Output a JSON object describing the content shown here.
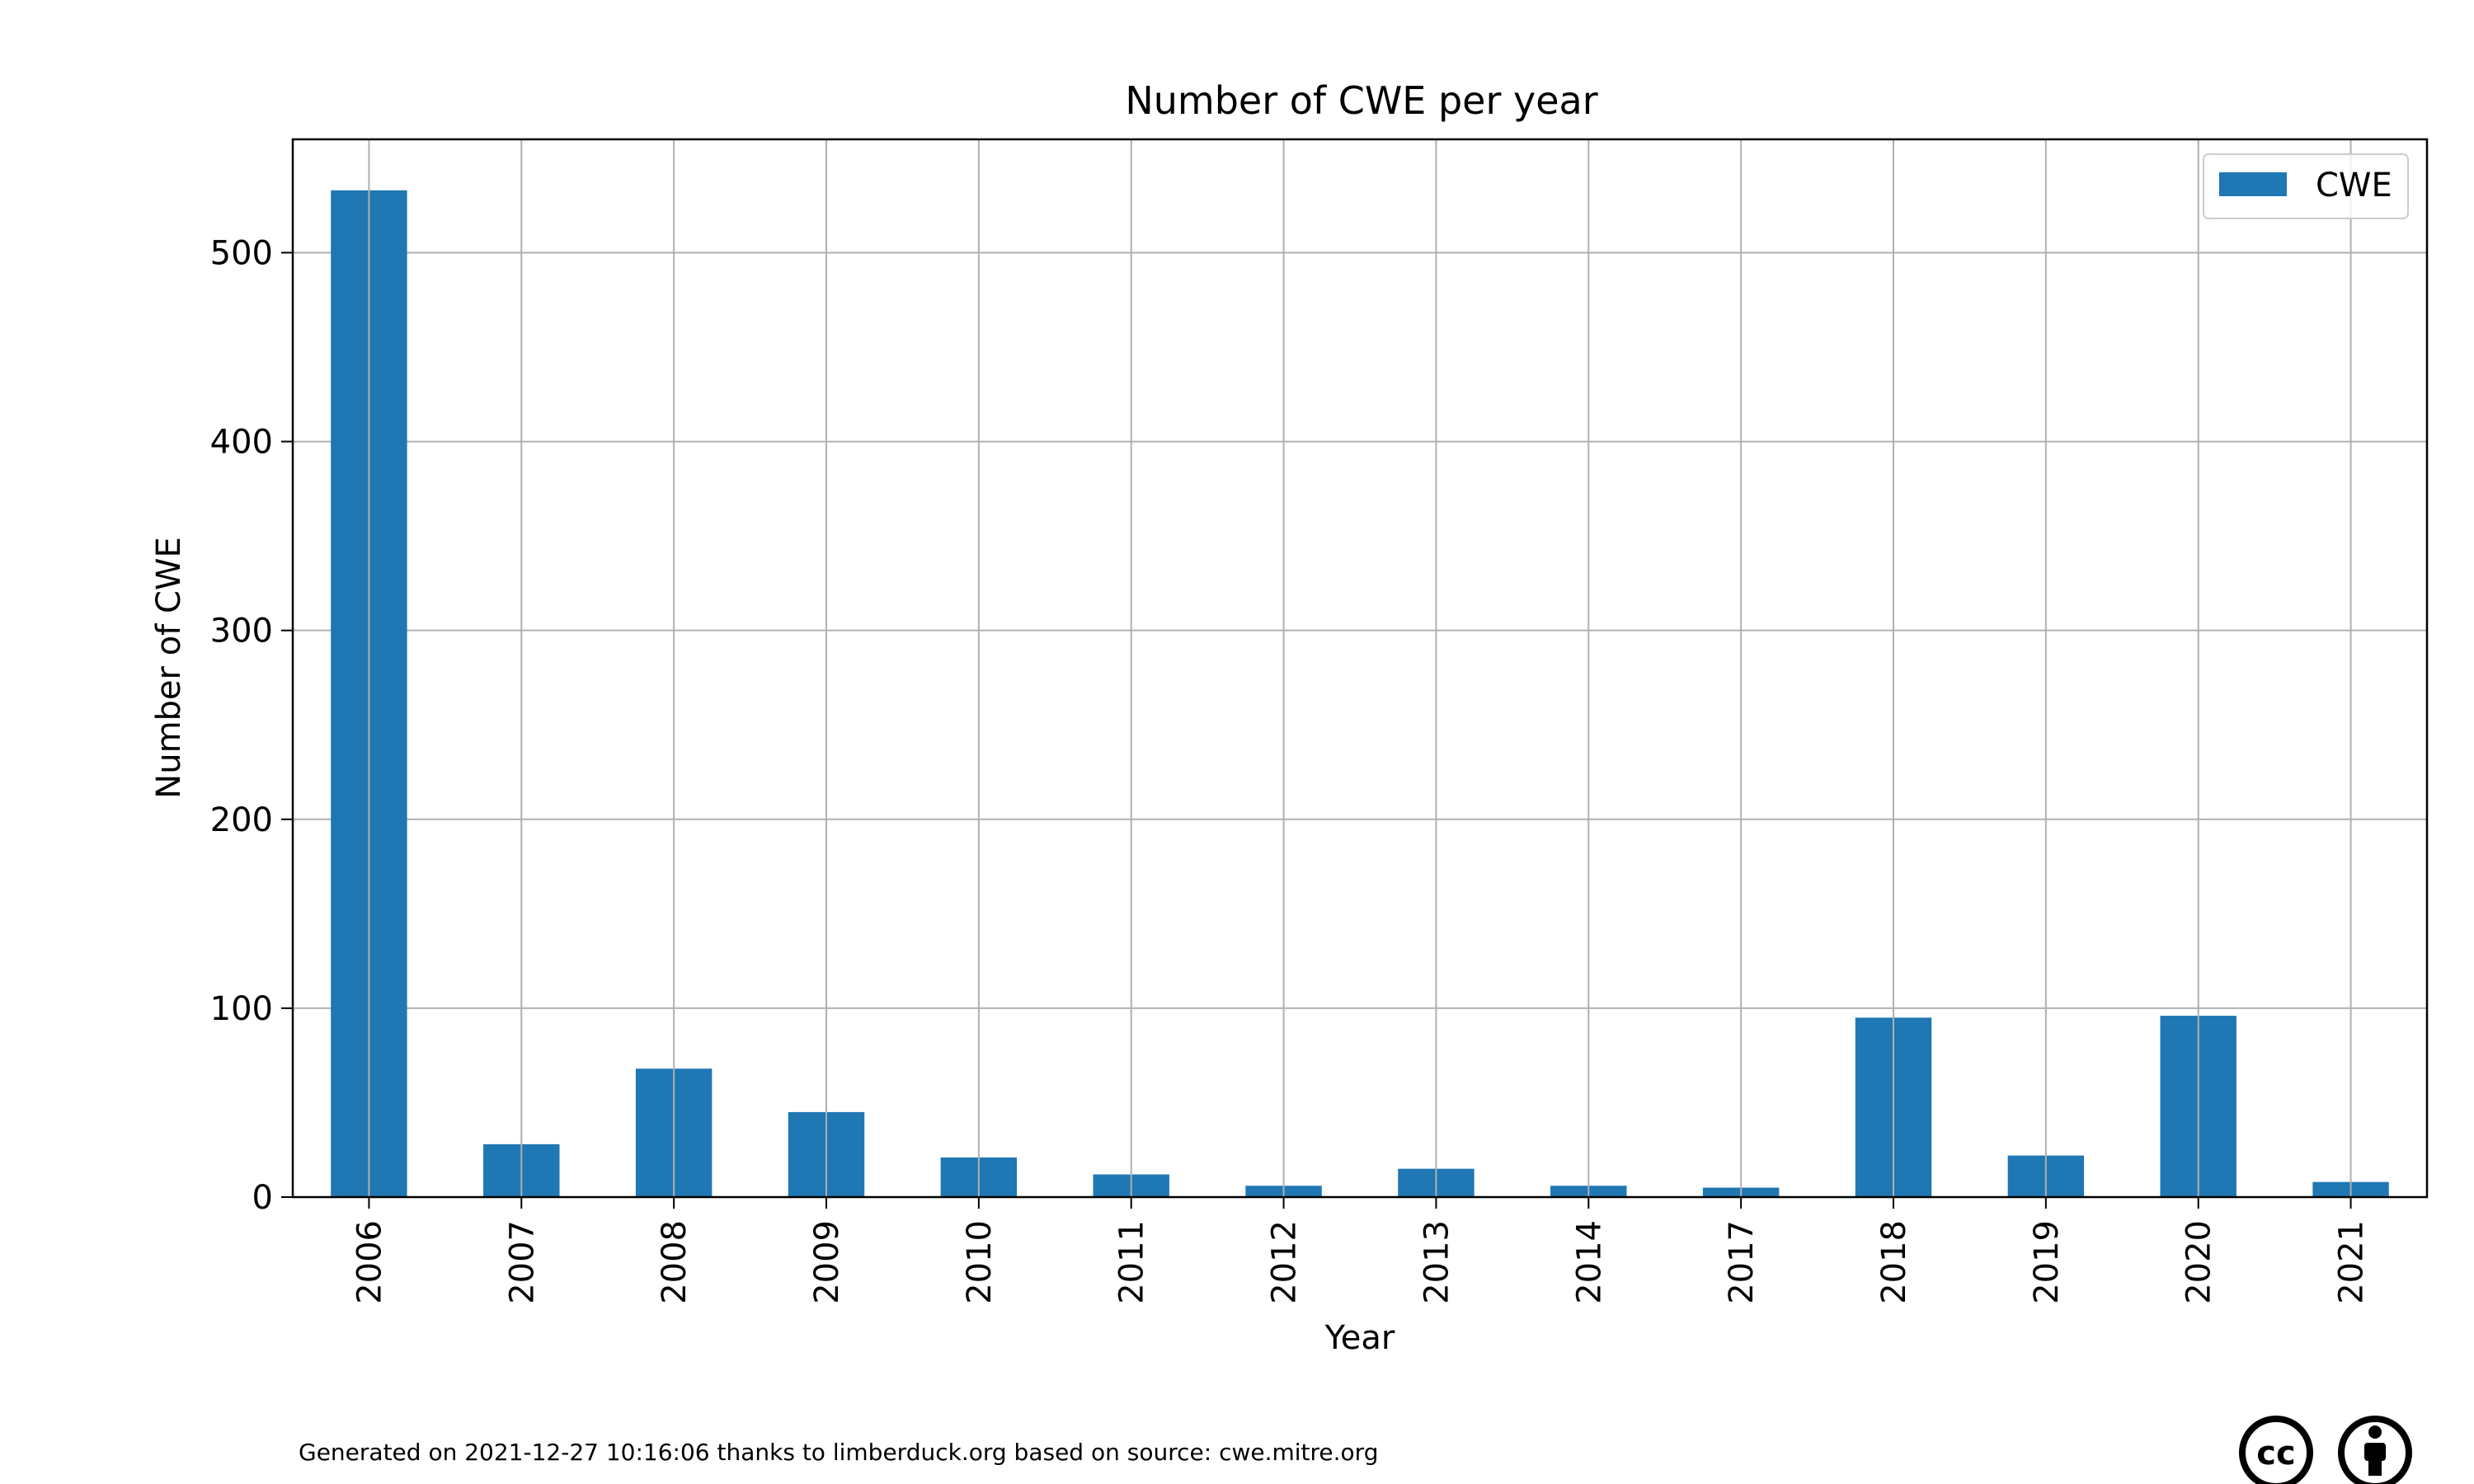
{
  "chart_data": {
    "type": "bar",
    "title": "Number of CWE per year",
    "xlabel": "Year",
    "ylabel": "Number of CWE",
    "categories": [
      "2006",
      "2007",
      "2008",
      "2009",
      "2010",
      "2011",
      "2012",
      "2013",
      "2014",
      "2017",
      "2018",
      "2019",
      "2020",
      "2021"
    ],
    "series": [
      {
        "name": "CWE",
        "values": [
          533,
          28,
          68,
          45,
          21,
          12,
          6,
          15,
          6,
          5,
          95,
          22,
          96,
          8
        ]
      }
    ],
    "ylim": [
      0,
      560
    ],
    "yticks": [
      0,
      100,
      200,
      300,
      400,
      500
    ],
    "grid": true,
    "legend_position": "top-right",
    "bar_color": "#1f77b4"
  },
  "footer": {
    "text": "Generated on 2021-12-27 10:16:06 thanks to limberduck.org based on source: cwe.mitre.org",
    "license_icons": [
      "cc-icon",
      "by-attribution-icon"
    ],
    "cc_label": "cc"
  }
}
